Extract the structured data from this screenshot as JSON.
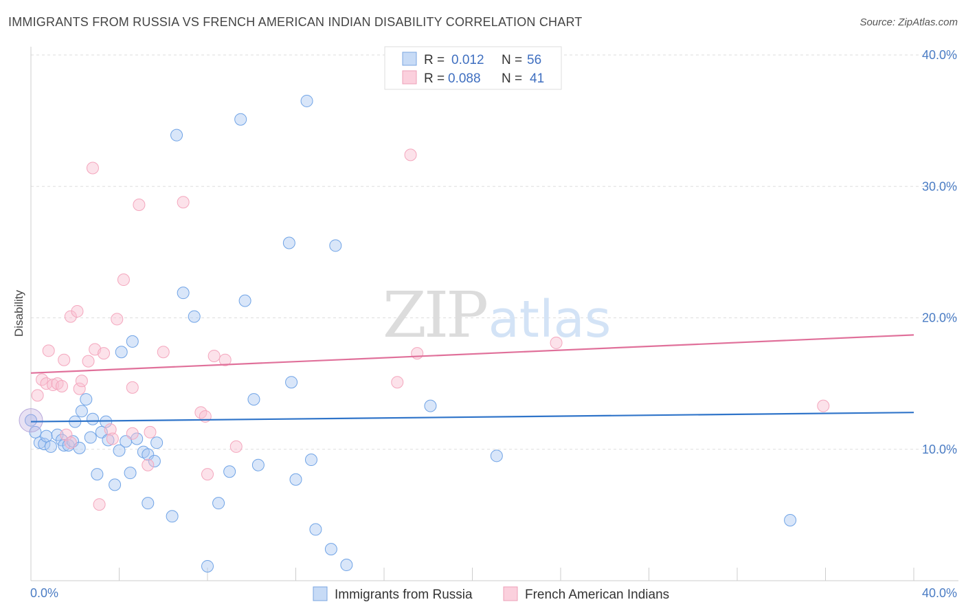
{
  "title": "IMMIGRANTS FROM RUSSIA VS FRENCH AMERICAN INDIAN DISABILITY CORRELATION CHART",
  "source": "Source: ZipAtlas.com",
  "watermark": {
    "zip": "ZIP",
    "atlas": "atlas"
  },
  "legend_top": [
    {
      "r_label": "R =",
      "r_value": "0.012",
      "n_label": "N =",
      "n_value": "56"
    },
    {
      "r_label": "R =",
      "r_value": "0.088",
      "n_label": "N =",
      "n_value": "41"
    }
  ],
  "chart_data": {
    "type": "scatter",
    "ylabel": "Disability",
    "xlim": [
      0,
      40
    ],
    "ylim": [
      0,
      40
    ],
    "x_tick_labels": [
      "0.0%",
      "40.0%"
    ],
    "y_ticks": [
      10,
      20,
      30,
      40
    ],
    "y_tick_labels": [
      "10.0%",
      "20.0%",
      "30.0%",
      "40.0%"
    ],
    "grid": true,
    "legend_position": "bottom",
    "series": [
      {
        "name": "Immigrants from Russia",
        "color": "#6fa3e6",
        "trend_color": "#2f74c9",
        "trend": [
          [
            0,
            12.1
          ],
          [
            40,
            12.8
          ]
        ],
        "points": [
          [
            0.0,
            12.2
          ],
          [
            0.2,
            11.3
          ],
          [
            0.4,
            10.5
          ],
          [
            0.6,
            10.4
          ],
          [
            0.7,
            11.0
          ],
          [
            0.9,
            10.2
          ],
          [
            1.2,
            11.1
          ],
          [
            1.4,
            10.7
          ],
          [
            1.5,
            10.3
          ],
          [
            1.7,
            10.3
          ],
          [
            1.9,
            10.6
          ],
          [
            2.0,
            12.1
          ],
          [
            2.2,
            10.1
          ],
          [
            2.3,
            12.9
          ],
          [
            2.5,
            13.8
          ],
          [
            2.7,
            10.9
          ],
          [
            2.8,
            12.3
          ],
          [
            3.0,
            8.1
          ],
          [
            3.2,
            11.3
          ],
          [
            3.4,
            12.1
          ],
          [
            3.5,
            10.7
          ],
          [
            3.8,
            7.3
          ],
          [
            4.0,
            9.9
          ],
          [
            4.1,
            17.4
          ],
          [
            4.3,
            10.6
          ],
          [
            4.5,
            8.2
          ],
          [
            4.6,
            18.2
          ],
          [
            4.8,
            10.8
          ],
          [
            5.1,
            9.8
          ],
          [
            5.3,
            9.6
          ],
          [
            5.3,
            5.9
          ],
          [
            5.6,
            9.1
          ],
          [
            5.7,
            10.5
          ],
          [
            6.4,
            4.9
          ],
          [
            6.6,
            33.9
          ],
          [
            6.9,
            21.9
          ],
          [
            7.4,
            20.1
          ],
          [
            8.0,
            1.1
          ],
          [
            8.5,
            5.9
          ],
          [
            9.0,
            8.3
          ],
          [
            9.5,
            35.1
          ],
          [
            9.7,
            21.3
          ],
          [
            10.1,
            13.8
          ],
          [
            10.3,
            8.8
          ],
          [
            11.7,
            25.7
          ],
          [
            11.8,
            15.1
          ],
          [
            12.0,
            7.7
          ],
          [
            12.5,
            36.5
          ],
          [
            12.7,
            9.2
          ],
          [
            12.9,
            3.9
          ],
          [
            13.6,
            2.4
          ],
          [
            13.8,
            25.5
          ],
          [
            14.3,
            1.2
          ],
          [
            18.1,
            13.3
          ],
          [
            21.1,
            9.5
          ],
          [
            34.4,
            4.6
          ]
        ]
      },
      {
        "name": "French American Indians",
        "color": "#f4a6bd",
        "trend_color": "#e0709a",
        "trend": [
          [
            0,
            15.8
          ],
          [
            40,
            18.7
          ]
        ],
        "points": [
          [
            0.3,
            14.1
          ],
          [
            0.5,
            15.3
          ],
          [
            0.7,
            15.0
          ],
          [
            0.8,
            17.5
          ],
          [
            1.0,
            14.9
          ],
          [
            1.2,
            15.0
          ],
          [
            1.4,
            14.8
          ],
          [
            1.5,
            16.8
          ],
          [
            1.6,
            11.1
          ],
          [
            1.8,
            10.5
          ],
          [
            1.8,
            20.1
          ],
          [
            2.1,
            20.5
          ],
          [
            2.2,
            14.6
          ],
          [
            2.3,
            15.2
          ],
          [
            2.6,
            16.7
          ],
          [
            2.8,
            31.4
          ],
          [
            2.9,
            17.6
          ],
          [
            3.1,
            5.8
          ],
          [
            3.3,
            17.3
          ],
          [
            3.6,
            11.5
          ],
          [
            3.7,
            10.8
          ],
          [
            3.9,
            19.9
          ],
          [
            4.2,
            22.9
          ],
          [
            4.6,
            14.7
          ],
          [
            4.6,
            11.2
          ],
          [
            4.9,
            28.6
          ],
          [
            5.3,
            8.8
          ],
          [
            5.4,
            11.3
          ],
          [
            6.0,
            17.4
          ],
          [
            6.9,
            28.8
          ],
          [
            7.7,
            12.8
          ],
          [
            7.9,
            12.5
          ],
          [
            8.0,
            8.1
          ],
          [
            8.3,
            17.1
          ],
          [
            8.8,
            16.8
          ],
          [
            9.3,
            10.2
          ],
          [
            16.6,
            15.1
          ],
          [
            17.2,
            32.4
          ],
          [
            17.5,
            17.3
          ],
          [
            23.8,
            18.1
          ],
          [
            35.9,
            13.3
          ]
        ]
      }
    ]
  }
}
